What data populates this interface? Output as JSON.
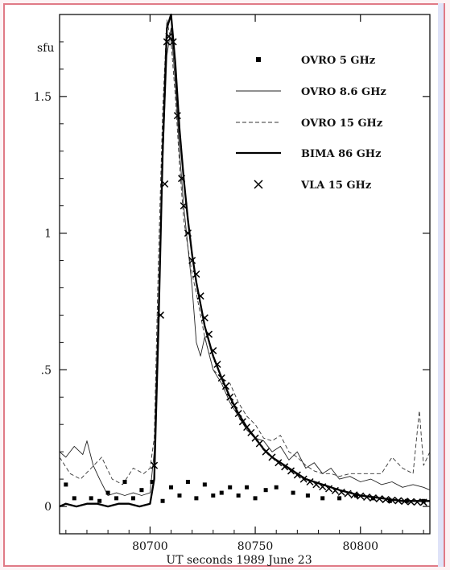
{
  "chart_data": {
    "type": "line",
    "title": "",
    "xlabel": "UT seconds 1989 June 23",
    "ylabel": "sfu",
    "xlim": [
      80657,
      80833
    ],
    "ylim": [
      -0.1,
      1.8
    ],
    "x_ticks": [
      80700,
      80750,
      80800
    ],
    "x_tick_labels": [
      "80700",
      "80750",
      "80800"
    ],
    "y_ticks": [
      0,
      0.5,
      1,
      1.5
    ],
    "y_tick_labels": [
      "0",
      ".5",
      "1",
      "1.5"
    ],
    "grid": false,
    "legend_position": "top-right",
    "series": [
      {
        "name": "OVRO 5 GHz",
        "style": "square-markers",
        "x": [
          80660,
          80664,
          80672,
          80676,
          80680,
          80684,
          80688,
          80692,
          80696,
          80701,
          80706,
          80710,
          80714,
          80718,
          80722,
          80726,
          80730,
          80734,
          80738,
          80742,
          80746,
          80750,
          80755,
          80760,
          80768,
          80775,
          80782,
          80790,
          80798,
          80806,
          80814,
          80822,
          80830
        ],
        "y": [
          0.08,
          0.03,
          0.03,
          0.02,
          0.05,
          0.03,
          0.09,
          0.03,
          0.06,
          0.09,
          0.02,
          0.07,
          0.04,
          0.09,
          0.03,
          0.08,
          0.04,
          0.05,
          0.07,
          0.04,
          0.07,
          0.03,
          0.06,
          0.07,
          0.05,
          0.04,
          0.03,
          0.03,
          0.04,
          0.03,
          0.02,
          0.02,
          0.02
        ]
      },
      {
        "name": "OVRO 8.6 GHz",
        "style": "thin-solid",
        "x": [
          80657,
          80660,
          80664,
          80668,
          80670,
          80673,
          80676,
          80680,
          80684,
          80688,
          80692,
          80696,
          80700,
          80702,
          80704,
          80706,
          80708,
          80710,
          80712,
          80714,
          80716,
          80718,
          80720,
          80722,
          80724,
          80726,
          80730,
          80734,
          80738,
          80742,
          80746,
          80750,
          80754,
          80758,
          80762,
          80766,
          80770,
          80774,
          80778,
          80782,
          80786,
          80790,
          80795,
          80800,
          80805,
          80810,
          80815,
          80820,
          80825,
          80830,
          80833
        ],
        "y": [
          0.2,
          0.18,
          0.22,
          0.19,
          0.24,
          0.15,
          0.1,
          0.04,
          0.05,
          0.04,
          0.05,
          0.04,
          0.05,
          0.2,
          0.75,
          1.25,
          1.65,
          1.75,
          1.55,
          1.3,
          1.1,
          0.95,
          0.8,
          0.6,
          0.55,
          0.62,
          0.5,
          0.45,
          0.38,
          0.33,
          0.28,
          0.25,
          0.24,
          0.2,
          0.22,
          0.17,
          0.2,
          0.14,
          0.16,
          0.12,
          0.14,
          0.1,
          0.11,
          0.09,
          0.1,
          0.08,
          0.09,
          0.07,
          0.08,
          0.07,
          0.06
        ]
      },
      {
        "name": "OVRO 15 GHz",
        "style": "dashed",
        "x": [
          80657,
          80662,
          80667,
          80672,
          80677,
          80682,
          80687,
          80692,
          80697,
          80700,
          80702,
          80704,
          80706,
          80708,
          80710,
          80712,
          80714,
          80716,
          80718,
          80720,
          80722,
          80724,
          80726,
          80730,
          80734,
          80738,
          80742,
          80746,
          80750,
          80754,
          80758,
          80762,
          80766,
          80770,
          80774,
          80778,
          80782,
          80786,
          80790,
          80795,
          80800,
          80805,
          80810,
          80815,
          80820,
          80825,
          80828,
          80830,
          80833
        ],
        "y": [
          0.18,
          0.12,
          0.1,
          0.14,
          0.18,
          0.1,
          0.08,
          0.14,
          0.12,
          0.14,
          0.25,
          0.9,
          1.45,
          1.78,
          1.7,
          1.5,
          1.25,
          1.05,
          0.95,
          0.85,
          0.78,
          0.7,
          0.62,
          0.5,
          0.47,
          0.45,
          0.38,
          0.33,
          0.3,
          0.25,
          0.24,
          0.26,
          0.2,
          0.18,
          0.15,
          0.13,
          0.12,
          0.12,
          0.11,
          0.12,
          0.12,
          0.12,
          0.12,
          0.18,
          0.14,
          0.12,
          0.35,
          0.15,
          0.2
        ]
      },
      {
        "name": "BIMA 86 GHz",
        "style": "thick-solid",
        "x": [
          80657,
          80660,
          80665,
          80670,
          80675,
          80680,
          80685,
          80690,
          80695,
          80700,
          80702,
          80704,
          80706,
          80708,
          80710,
          80712,
          80714,
          80716,
          80718,
          80720,
          80722,
          80724,
          80726,
          80730,
          80734,
          80738,
          80742,
          80746,
          80750,
          80754,
          80758,
          80762,
          80766,
          80770,
          80774,
          80778,
          80782,
          80786,
          80790,
          80795,
          80800,
          80805,
          80810,
          80815,
          80820,
          80825,
          80830,
          80833
        ],
        "y": [
          0,
          0.01,
          0,
          0.01,
          0.01,
          0,
          0.01,
          0.01,
          0,
          0.01,
          0.1,
          0.65,
          1.3,
          1.75,
          1.8,
          1.62,
          1.38,
          1.2,
          1.05,
          0.92,
          0.82,
          0.74,
          0.66,
          0.55,
          0.47,
          0.4,
          0.34,
          0.29,
          0.25,
          0.21,
          0.18,
          0.16,
          0.14,
          0.12,
          0.1,
          0.09,
          0.08,
          0.07,
          0.06,
          0.05,
          0.04,
          0.035,
          0.03,
          0.025,
          0.02,
          0.02,
          0.02,
          0.02
        ]
      },
      {
        "name": "VLA 15 GHz",
        "style": "x-markers",
        "x": [
          80702,
          80705,
          80707,
          80708,
          80709,
          80711,
          80713,
          80715,
          80716,
          80718,
          80720,
          80722,
          80724,
          80726,
          80728,
          80730,
          80732,
          80734,
          80736,
          80738,
          80740,
          80742,
          80744,
          80746,
          80748,
          80750,
          80752,
          80755,
          80758,
          80761,
          80764,
          80767,
          80770,
          80773,
          80776,
          80779,
          80782,
          80785,
          80788,
          80791,
          80794,
          80797,
          80800,
          80803,
          80806,
          80809,
          80812,
          80815,
          80818,
          80821,
          80824,
          80827,
          80830
        ],
        "y": [
          0.15,
          0.7,
          1.18,
          1.7,
          1.72,
          1.7,
          1.43,
          1.2,
          1.1,
          1.0,
          0.9,
          0.85,
          0.77,
          0.69,
          0.63,
          0.57,
          0.52,
          0.47,
          0.44,
          0.4,
          0.37,
          0.34,
          0.31,
          0.29,
          0.27,
          0.25,
          0.23,
          0.2,
          0.18,
          0.16,
          0.145,
          0.13,
          0.115,
          0.1,
          0.09,
          0.08,
          0.072,
          0.065,
          0.058,
          0.052,
          0.047,
          0.042,
          0.038,
          0.034,
          0.031,
          0.028,
          0.025,
          0.023,
          0.021,
          0.019,
          0.017,
          0.016,
          0.015
        ]
      }
    ]
  }
}
